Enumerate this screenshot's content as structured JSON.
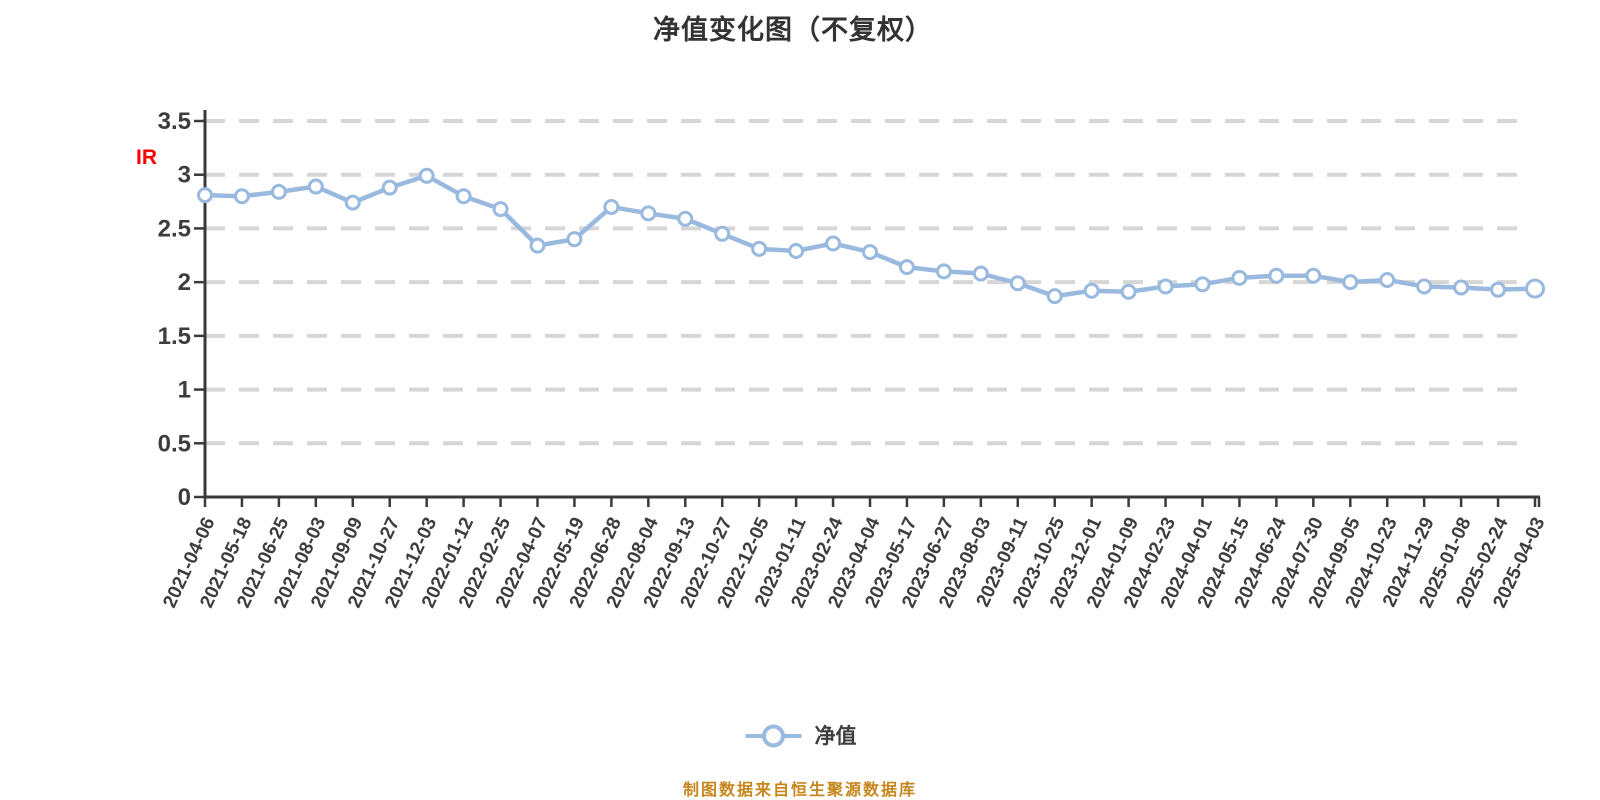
{
  "title": "净值变化图（不复权）",
  "y_axis": {
    "unit_label": "IR",
    "tick_labels": [
      "0",
      "0.5",
      "1",
      "1.5",
      "2",
      "2.5",
      "3",
      "3.5"
    ]
  },
  "legend": {
    "label": "净值"
  },
  "footer": {
    "source_note": "制图数据来自恒生聚源数据库"
  },
  "colors": {
    "line": "#99B9DF",
    "marker_fill": "#FFFFFF",
    "grid": "#D6D6D6",
    "axis": "#3A3A3A",
    "label_text": "#3D3D3D",
    "title_text": "#333333",
    "unit_label": "#FF0000",
    "footer_text": "#C5861B",
    "background": "#FFFFFF"
  },
  "chart_data": {
    "type": "line",
    "title": "净值变化图（不复权）",
    "xlabel": "",
    "ylabel": "",
    "ylim": [
      0,
      3.5
    ],
    "yticks": [
      0,
      0.5,
      1,
      1.5,
      2,
      2.5,
      3,
      3.5
    ],
    "grid": "horizontal-dashed",
    "legend_position": "bottom",
    "marker": "circle",
    "x": [
      "2021-04-06",
      "2021-05-18",
      "2021-06-25",
      "2021-08-03",
      "2021-09-09",
      "2021-10-27",
      "2021-12-03",
      "2022-01-12",
      "2022-02-25",
      "2022-04-07",
      "2022-05-19",
      "2022-06-28",
      "2022-08-04",
      "2022-09-13",
      "2022-10-27",
      "2022-12-05",
      "2023-01-11",
      "2023-02-24",
      "2023-04-04",
      "2023-05-17",
      "2023-06-27",
      "2023-08-03",
      "2023-09-11",
      "2023-10-25",
      "2023-12-01",
      "2024-01-09",
      "2024-02-23",
      "2024-04-01",
      "2024-05-15",
      "2024-06-24",
      "2024-07-30",
      "2024-09-05",
      "2024-10-23",
      "2024-11-29",
      "2025-01-08",
      "2025-02-24",
      "2025-04-03"
    ],
    "series": [
      {
        "name": "净值",
        "values": [
          2.81,
          2.8,
          2.84,
          2.89,
          2.74,
          2.88,
          2.99,
          2.8,
          2.68,
          2.34,
          2.4,
          2.7,
          2.64,
          2.59,
          2.45,
          2.31,
          2.29,
          2.36,
          2.28,
          2.14,
          2.1,
          2.08,
          1.99,
          1.87,
          1.92,
          1.91,
          1.96,
          1.98,
          2.04,
          2.06,
          2.06,
          2.0,
          2.02,
          1.96,
          1.95,
          1.93,
          1.94
        ]
      }
    ]
  }
}
